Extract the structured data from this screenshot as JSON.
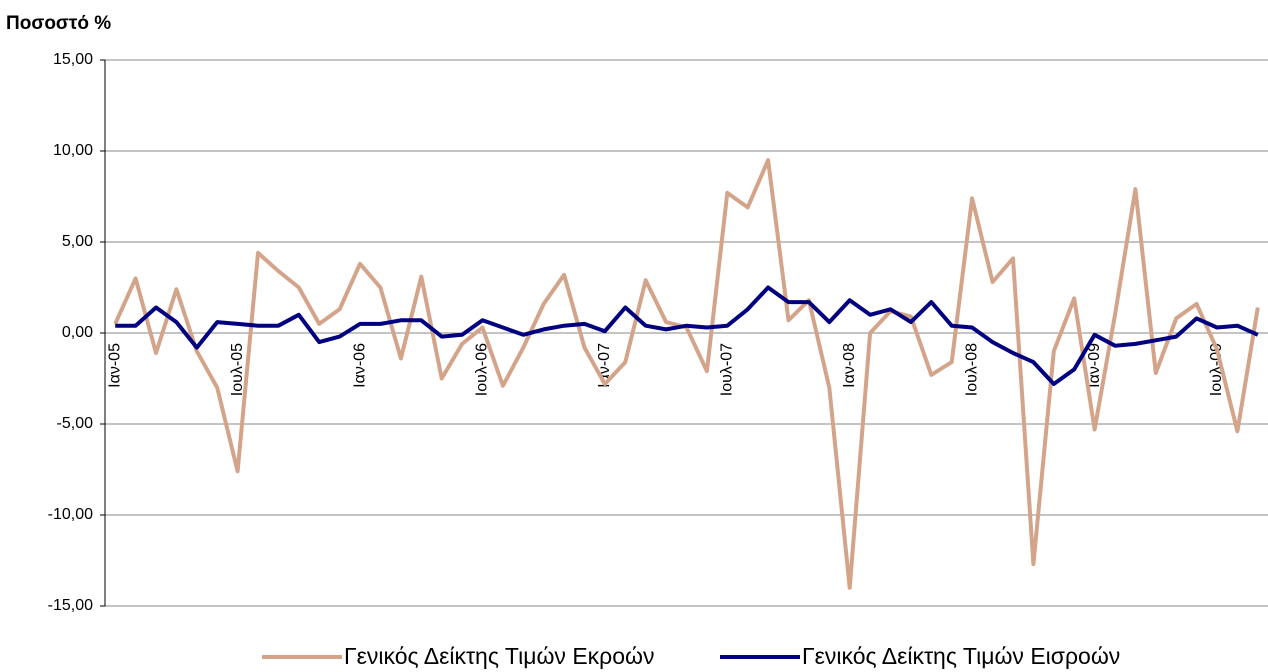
{
  "chart_data": {
    "type": "line",
    "title": "Ποσοστό %",
    "categories": [
      "Ιαν-05",
      null,
      null,
      null,
      null,
      null,
      "Ιουλ-05",
      null,
      null,
      null,
      null,
      null,
      "Ιαν-06",
      null,
      null,
      null,
      null,
      null,
      "Ιουλ-06",
      null,
      null,
      null,
      null,
      null,
      "Ιαν-07",
      null,
      null,
      null,
      null,
      null,
      "Ιουλ-07",
      null,
      null,
      null,
      null,
      null,
      "Ιαν-08",
      null,
      null,
      null,
      null,
      null,
      "Ιουλ-08",
      null,
      null,
      null,
      null,
      null,
      "Ιαν-09",
      null,
      null,
      null,
      null,
      null,
      "Ιουλ-09",
      null,
      null
    ],
    "series": [
      {
        "name": "Γενικός Δείκτης Τιμών Εκροών",
        "color": "#d4a48a",
        "values": [
          0.5,
          3.0,
          -1.1,
          2.4,
          -1.0,
          -3.0,
          -7.6,
          4.4,
          3.4,
          2.5,
          0.5,
          1.3,
          3.8,
          2.5,
          -1.4,
          3.1,
          -2.5,
          -0.6,
          0.3,
          -2.9,
          -0.8,
          1.6,
          3.2,
          -0.8,
          -2.8,
          -1.6,
          2.9,
          0.6,
          0.3,
          -2.1,
          7.7,
          6.9,
          9.5,
          0.7,
          1.8,
          -3.0,
          -14.0,
          0.0,
          1.2,
          0.9,
          -2.3,
          -1.6,
          7.4,
          2.8,
          4.1,
          -12.7,
          -1.0,
          1.9,
          -5.3,
          1.0,
          7.9,
          -2.2,
          0.8,
          1.6,
          -0.9,
          -5.4,
          1.4
        ]
      },
      {
        "name": "Γενικός Δείκτης Τιμών Εισροών",
        "color": "#000080",
        "values": [
          0.4,
          0.4,
          1.4,
          0.6,
          -0.8,
          0.6,
          0.5,
          0.4,
          0.4,
          1.0,
          -0.5,
          -0.2,
          0.5,
          0.5,
          0.7,
          0.7,
          -0.2,
          -0.1,
          0.7,
          0.3,
          -0.1,
          0.2,
          0.4,
          0.5,
          0.1,
          1.4,
          0.4,
          0.2,
          0.4,
          0.3,
          0.4,
          1.3,
          2.5,
          1.7,
          1.7,
          0.6,
          1.8,
          1.0,
          1.3,
          0.6,
          1.7,
          0.4,
          0.3,
          -0.5,
          -1.1,
          -1.6,
          -2.8,
          -2.0,
          -0.1,
          -0.7,
          -0.6,
          -0.4,
          -0.2,
          0.8,
          0.3,
          0.4,
          -0.1
        ]
      }
    ],
    "ylim": [
      -15,
      15
    ],
    "yticks": [
      {
        "value": -15,
        "label": "-15,00"
      },
      {
        "value": -10,
        "label": "-10,00"
      },
      {
        "value": -5,
        "label": "-5,00"
      },
      {
        "value": 0,
        "label": "0,00"
      },
      {
        "value": 5,
        "label": "5,00"
      },
      {
        "value": 10,
        "label": "10,00"
      },
      {
        "value": 15,
        "label": "15,00"
      }
    ],
    "grid": true,
    "legend": "bottom"
  }
}
